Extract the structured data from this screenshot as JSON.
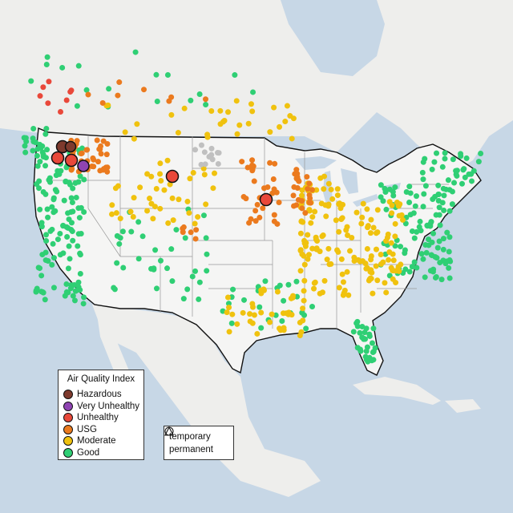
{
  "legend": {
    "title": "Air Quality Index",
    "categories": [
      {
        "label": "Hazardous",
        "color": "#7e3a2d"
      },
      {
        "label": "Very Unhealthy",
        "color": "#8f44b2"
      },
      {
        "label": "Unhealthy",
        "color": "#e9483a"
      },
      {
        "label": "USG",
        "color": "#eb7a1e"
      },
      {
        "label": "Moderate",
        "color": "#f0c20e"
      },
      {
        "label": "Good",
        "color": "#2fcf74"
      }
    ]
  },
  "shape_legend": {
    "items": [
      {
        "label": "temporary",
        "shape": "circle-icon"
      },
      {
        "label": "permanent",
        "shape": "triangle-icon"
      }
    ]
  },
  "colors": {
    "ocean": "#c7d7e6",
    "land": "#f3f3f2",
    "foreign_land": "#e9e9e7",
    "no_data_marker": "#c0c0c0"
  }
}
